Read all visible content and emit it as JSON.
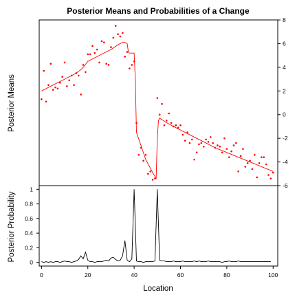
{
  "chart_data": [
    {
      "type": "scatter",
      "title": "Posterior Means and Probabilities of a Change",
      "ylabel": "Posterior Means",
      "xlim": [
        -1,
        102
      ],
      "ylim": [
        -6,
        8
      ],
      "yticks": [
        -6,
        -4,
        -2,
        0,
        2,
        4,
        6,
        8
      ],
      "y_axis_side": "right",
      "grid": false,
      "colors": {
        "points": "#ff0000",
        "mean_line": "#ff0000",
        "axes": "#000000"
      },
      "series": [
        {
          "kind": "points",
          "x": [
            0,
            1,
            2,
            3,
            4,
            5,
            6,
            7,
            8,
            9,
            10,
            11,
            12,
            13,
            14,
            15,
            16,
            17,
            18,
            19,
            20,
            21,
            22,
            23,
            24,
            25,
            26,
            27,
            28,
            29,
            30,
            31,
            32,
            33,
            34,
            35,
            36,
            37,
            38,
            39,
            40,
            41,
            42,
            43,
            44,
            45,
            46,
            47,
            48,
            49,
            50,
            51,
            52,
            53,
            54,
            55,
            56,
            57,
            58,
            59,
            60,
            61,
            62,
            63,
            64,
            65,
            66,
            67,
            68,
            69,
            70,
            71,
            72,
            73,
            74,
            75,
            76,
            77,
            78,
            79,
            80,
            81,
            82,
            83,
            84,
            85,
            86,
            87,
            88,
            89,
            90,
            91,
            92,
            93,
            94,
            95,
            96,
            97,
            98,
            99,
            100
          ],
          "values": [
            1.3,
            3.7,
            1.1,
            2.5,
            4.3,
            2.1,
            2.3,
            2.2,
            2.7,
            3.2,
            4.4,
            2.4,
            2.9,
            3.3,
            2.5,
            3.5,
            3.3,
            1.7,
            4.2,
            3.6,
            5.1,
            5.1,
            5.8,
            5.2,
            5.5,
            4.4,
            6.2,
            6.1,
            4.3,
            4.2,
            5.7,
            6.5,
            7.5,
            6.8,
            6.6,
            6.9,
            4.9,
            5.3,
            3.9,
            4.2,
            4.5,
            -0.7,
            -3.4,
            -2.8,
            -3.9,
            -3.4,
            -5,
            -4.8,
            -5.5,
            -5.4,
            1.4,
            0,
            0.9,
            -0.9,
            -0.5,
            0.1,
            -0.7,
            -1,
            -0.9,
            -1.1,
            -0.9,
            -1.7,
            -2.2,
            -1.5,
            -2.4,
            -2.1,
            -3.8,
            -3.2,
            -2.5,
            -2.4,
            -2.7,
            -2.1,
            -2.3,
            -1.9,
            -2.4,
            -2.8,
            -2.6,
            -2.7,
            -3.2,
            -2,
            -2.9,
            -3.6,
            -3.1,
            -2.6,
            -2.4,
            -4.8,
            -3.5,
            -2.9,
            -4.4,
            -4.1,
            -3.9,
            -4.6,
            -3.4,
            -5.3,
            -4.1,
            -3.6,
            -3.6,
            -4.2,
            -5.1,
            -5.4,
            -4.9
          ]
        },
        {
          "kind": "line",
          "name": "posterior mean",
          "x": [
            0,
            5,
            10,
            15,
            17,
            18,
            20,
            25,
            30,
            33,
            35,
            36,
            37,
            37.5,
            38,
            39,
            40,
            40.5,
            41,
            45,
            48,
            49.5,
            50,
            50.5,
            51,
            55,
            60,
            65,
            70,
            75,
            80,
            85,
            90,
            95,
            100
          ],
          "values": [
            2.0,
            2.5,
            3.0,
            3.5,
            3.8,
            4.0,
            4.5,
            5.0,
            5.5,
            5.9,
            6.1,
            6.1,
            6.0,
            5.3,
            5.2,
            5.2,
            5.2,
            3.0,
            -1.5,
            -3.8,
            -4.9,
            -5.4,
            -2.0,
            -0.5,
            -0.3,
            -0.8,
            -1.3,
            -1.8,
            -2.3,
            -2.8,
            -3.2,
            -3.6,
            -4.0,
            -4.4,
            -4.8
          ]
        }
      ]
    },
    {
      "type": "line",
      "xlabel": "Location",
      "ylabel": "Posterior Probability",
      "xlim": [
        -1,
        102
      ],
      "ylim": [
        -0.05,
        1.05
      ],
      "xticks": [
        0,
        20,
        40,
        60,
        80,
        100
      ],
      "yticks": [
        0,
        0.2,
        0.4,
        0.6,
        0.8,
        1
      ],
      "grid": false,
      "colors": {
        "line": "#000000"
      },
      "series": [
        {
          "x": [
            0,
            1,
            2,
            3,
            4,
            5,
            6,
            7,
            8,
            9,
            10,
            11,
            12,
            13,
            14,
            15,
            16,
            17,
            18,
            19,
            20,
            21,
            22,
            23,
            24,
            25,
            26,
            27,
            28,
            29,
            30,
            31,
            32,
            33,
            34,
            35,
            36,
            37,
            38,
            39,
            40,
            41,
            42,
            43,
            44,
            45,
            46,
            47,
            48,
            49,
            50,
            51,
            52,
            53,
            54,
            55,
            56,
            57,
            58,
            59,
            60,
            61,
            62,
            63,
            64,
            65,
            66,
            67,
            68,
            69,
            70,
            71,
            72,
            73,
            74,
            75,
            76,
            77,
            78,
            79,
            80,
            81,
            82,
            83,
            84,
            85,
            86,
            87,
            88,
            89,
            90,
            91,
            92,
            93,
            94,
            95,
            96,
            97,
            98,
            99
          ],
          "values": [
            0.01,
            0,
            0.01,
            0,
            0.01,
            0,
            0.01,
            0.01,
            0,
            0.01,
            0.02,
            0.01,
            0.01,
            0,
            0.01,
            0.02,
            0.04,
            0.09,
            0.05,
            0.14,
            0.03,
            0.01,
            0.01,
            0,
            0.01,
            0.01,
            0.01,
            0.02,
            0.03,
            0.02,
            0.06,
            0.07,
            0.04,
            0.02,
            0.03,
            0.09,
            0.3,
            0.03,
            0.01,
            0.05,
            1,
            0.02,
            0.01,
            0.01,
            0,
            0.01,
            0.01,
            0.01,
            0.01,
            0.02,
            1,
            0.03,
            0.02,
            0.02,
            0.01,
            0.01,
            0.01,
            0.02,
            0.01,
            0.01,
            0.01,
            0.02,
            0.01,
            0.01,
            0.01,
            0.01,
            0.02,
            0.01,
            0.02,
            0.01,
            0.01,
            0.01,
            0.02,
            0.01,
            0.01,
            0.01,
            0.01,
            0.01,
            0,
            0.01,
            0.01,
            0.02,
            0.01,
            0.01,
            0.01,
            0.02,
            0.01,
            0.01,
            0.01,
            0.01,
            0.01,
            0.01,
            0.01,
            0.01,
            0.01,
            0.01,
            0.01,
            0.01,
            0.01,
            0.01
          ]
        }
      ]
    }
  ]
}
